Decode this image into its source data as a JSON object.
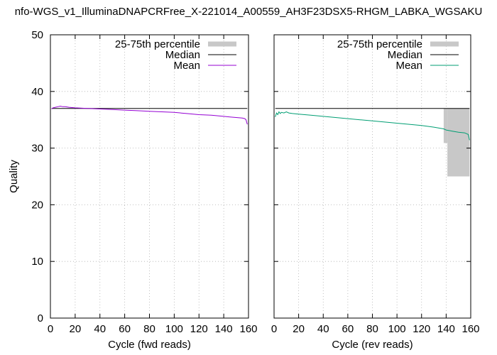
{
  "title": "nfo-WGS_v1_IlluminaDNAPCRFree_X-221014_A00559_AH3F23DSX5-RHGM_LABKA_WGSAKU",
  "colors": {
    "mean_fwd": "#9400d3",
    "mean_rev": "#009e73",
    "median": "#000000",
    "iqr": "#c8c8c8",
    "grid": "#b0b0b0"
  },
  "chart_data": [
    {
      "type": "line",
      "panel": "fwd",
      "xlabel": "Cycle (fwd reads)",
      "ylabel": "Quality",
      "xlim": [
        0,
        160
      ],
      "ylim": [
        0,
        50
      ],
      "xticks": [
        0,
        20,
        40,
        60,
        80,
        100,
        120,
        140,
        160
      ],
      "yticks": [
        0,
        10,
        20,
        30,
        40,
        50
      ],
      "grid": true,
      "legend_position": "top-right",
      "legend": [
        "25-75th percentile",
        "Median",
        "Mean"
      ],
      "series": [
        {
          "name": "Median",
          "x": [
            1,
            159
          ],
          "values": [
            37,
            37
          ]
        },
        {
          "name": "Mean",
          "x": [
            1,
            2,
            4,
            6,
            8,
            10,
            12,
            15,
            20,
            30,
            40,
            50,
            60,
            70,
            80,
            90,
            100,
            110,
            120,
            130,
            140,
            145,
            150,
            155,
            157,
            158,
            159
          ],
          "values": [
            36.9,
            37.1,
            37.2,
            37.3,
            37.4,
            37.3,
            37.3,
            37.2,
            37.1,
            37.0,
            36.9,
            36.8,
            36.7,
            36.6,
            36.5,
            36.4,
            36.3,
            36.1,
            35.9,
            35.8,
            35.6,
            35.5,
            35.4,
            35.3,
            35.2,
            35.0,
            34.2
          ]
        }
      ],
      "iqr": []
    },
    {
      "type": "line",
      "panel": "rev",
      "xlabel": "Cycle (rev reads)",
      "ylabel": "",
      "xlim": [
        0,
        160
      ],
      "ylim": [
        0,
        50
      ],
      "xticks": [
        0,
        20,
        40,
        60,
        80,
        100,
        120,
        140,
        160
      ],
      "yticks": [
        0,
        10,
        20,
        30,
        40,
        50
      ],
      "grid": true,
      "legend_position": "top-right",
      "legend": [
        "25-75th percentile",
        "Median",
        "Mean"
      ],
      "series": [
        {
          "name": "Median",
          "x": [
            1,
            159
          ],
          "values": [
            37,
            37
          ]
        },
        {
          "name": "Mean",
          "x": [
            1,
            2,
            3,
            4,
            5,
            6,
            8,
            10,
            12,
            15,
            20,
            30,
            40,
            50,
            60,
            70,
            80,
            90,
            100,
            110,
            120,
            130,
            138,
            140,
            145,
            150,
            155,
            157,
            158,
            159
          ],
          "values": [
            35.5,
            36.2,
            35.9,
            36.4,
            36.1,
            36.3,
            36.2,
            36.4,
            36.2,
            36.1,
            36.0,
            35.8,
            35.6,
            35.4,
            35.2,
            35.0,
            34.8,
            34.6,
            34.4,
            34.2,
            34.0,
            33.7,
            33.4,
            33.2,
            33.0,
            32.8,
            32.7,
            32.5,
            32.4,
            31.4
          ]
        }
      ],
      "iqr": [
        {
          "x0": 138,
          "x1": 141,
          "low": 30.9,
          "high": 37
        },
        {
          "x0": 141,
          "x1": 159,
          "low": 25,
          "high": 37
        }
      ]
    }
  ]
}
